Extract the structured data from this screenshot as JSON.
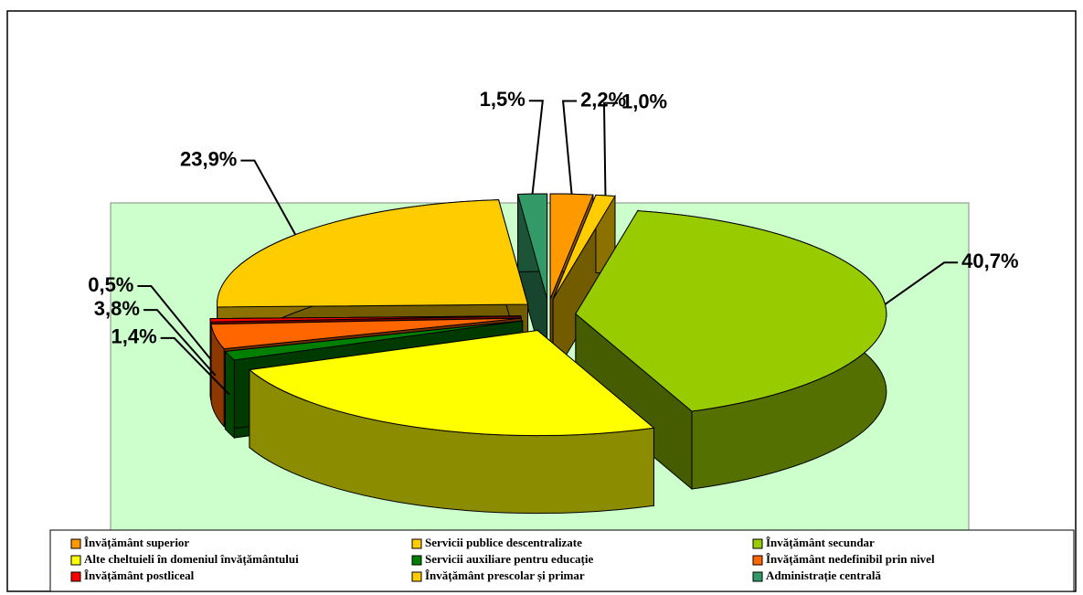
{
  "chart_data": {
    "type": "pie",
    "categories": [
      "Învățământ superior",
      "Servicii publice descentralizate",
      "Învățământ secundar",
      "Alte cheltuieli în domeniul învățământului",
      "Servicii auxiliare pentru educație",
      "Învățământ nedefinibil prin nivel",
      "Învățământ postliceal",
      "Învățământ prescolar și primar",
      "Administrație centrală"
    ],
    "values": [
      2.2,
      1.0,
      40.7,
      25.0,
      1.4,
      3.8,
      0.5,
      23.9,
      1.5
    ],
    "value_labels": [
      "2,2%",
      "1,0%",
      "40,7%",
      null,
      "1,4%",
      "3,8%",
      "0,5%",
      "23,9%",
      "1,5%"
    ],
    "colors": [
      "#ff9900",
      "#ffcc00",
      "#99cc00",
      "#ffff00",
      "#008000",
      "#ff6600",
      "#ff0000",
      "#ffcc00",
      "#339966"
    ],
    "legend": "bottom"
  }
}
